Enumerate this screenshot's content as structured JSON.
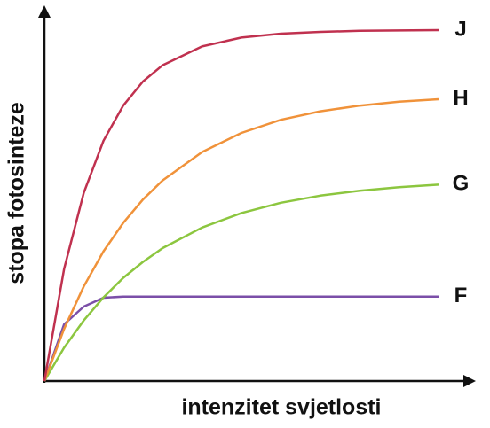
{
  "chart_data": {
    "type": "line",
    "x_label": "intenzitet svjetlosti",
    "y_label": "stopa fotosinteze",
    "x": [
      0,
      5,
      10,
      15,
      20,
      25,
      30,
      40,
      50,
      60,
      70,
      80,
      90,
      100
    ],
    "xlim": [
      0,
      100
    ],
    "ylim": [
      0,
      100
    ],
    "series": [
      {
        "name": "J",
        "color": "#c0314f",
        "values": [
          0,
          31.6,
          53.1,
          67.8,
          77.7,
          84.5,
          89.1,
          94.4,
          96.9,
          98.0,
          98.5,
          98.8,
          98.9,
          99.0
        ]
      },
      {
        "name": "H",
        "color": "#f0923a",
        "values": [
          0,
          14.7,
          26.7,
          36.6,
          44.6,
          51.2,
          56.6,
          64.6,
          70.0,
          73.7,
          76.1,
          77.7,
          78.8,
          79.5
        ]
      },
      {
        "name": "G",
        "color": "#8cc63f",
        "values": [
          0,
          9.4,
          17.1,
          23.6,
          29.1,
          33.6,
          37.5,
          43.3,
          47.4,
          50.3,
          52.3,
          53.7,
          54.7,
          55.4
        ]
      },
      {
        "name": "F",
        "color": "#7b4fa8",
        "values": [
          0,
          16,
          21,
          23.5,
          23.8,
          23.8,
          23.8,
          23.8,
          23.8,
          23.8,
          23.8,
          23.8,
          23.8,
          23.8
        ]
      }
    ]
  }
}
